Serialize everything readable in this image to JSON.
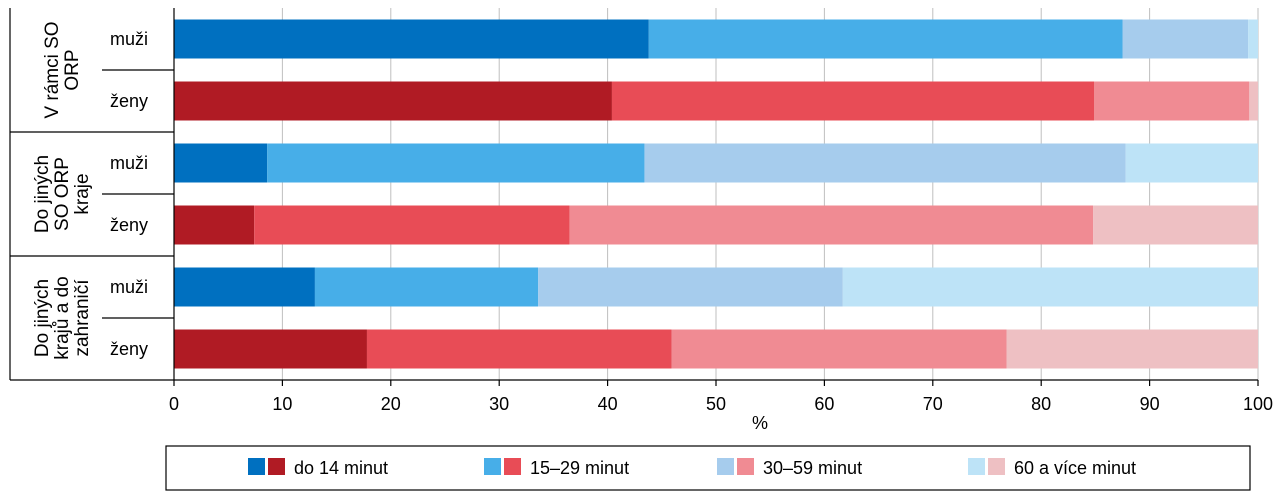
{
  "chart_data": {
    "type": "bar",
    "orientation": "horizontal",
    "stacked": true,
    "xlabel": "%",
    "xlim": [
      0,
      100
    ],
    "xticks": [
      0,
      10,
      20,
      30,
      40,
      50,
      60,
      70,
      80,
      90,
      100
    ],
    "grid": "vertical",
    "legend_position": "bottom",
    "series_names": [
      "do 14 minut",
      "15–29 minut",
      "30–59 minut",
      "60 a více minut"
    ],
    "colors": {
      "muži": [
        "#0070c0",
        "#47aee8",
        "#a6cced",
        "#bde3f7"
      ],
      "ženy": [
        "#b01b24",
        "#e84c56",
        "#f08b93",
        "#eec0c3"
      ]
    },
    "groups": [
      {
        "label_lines": [
          "V rámci SO",
          "ORP"
        ],
        "rows": [
          {
            "label": "muži",
            "values": [
              43.8,
              43.7,
              11.6,
              0.9
            ]
          },
          {
            "label": "ženy",
            "values": [
              40.4,
              44.5,
              14.3,
              0.8
            ]
          }
        ]
      },
      {
        "label_lines": [
          "Do jiných",
          "SO ORP",
          "kraje"
        ],
        "rows": [
          {
            "label": "muži",
            "values": [
              8.6,
              34.8,
              44.4,
              12.2
            ]
          },
          {
            "label": "ženy",
            "values": [
              7.4,
              29.1,
              48.3,
              15.2
            ]
          }
        ]
      },
      {
        "label_lines": [
          "Do jiných",
          "krajů a do",
          "zahraničí"
        ],
        "rows": [
          {
            "label": "muži",
            "values": [
              13.0,
              20.6,
              28.1,
              38.3
            ]
          },
          {
            "label": "ženy",
            "values": [
              17.8,
              28.1,
              30.9,
              23.2
            ]
          }
        ]
      }
    ]
  }
}
